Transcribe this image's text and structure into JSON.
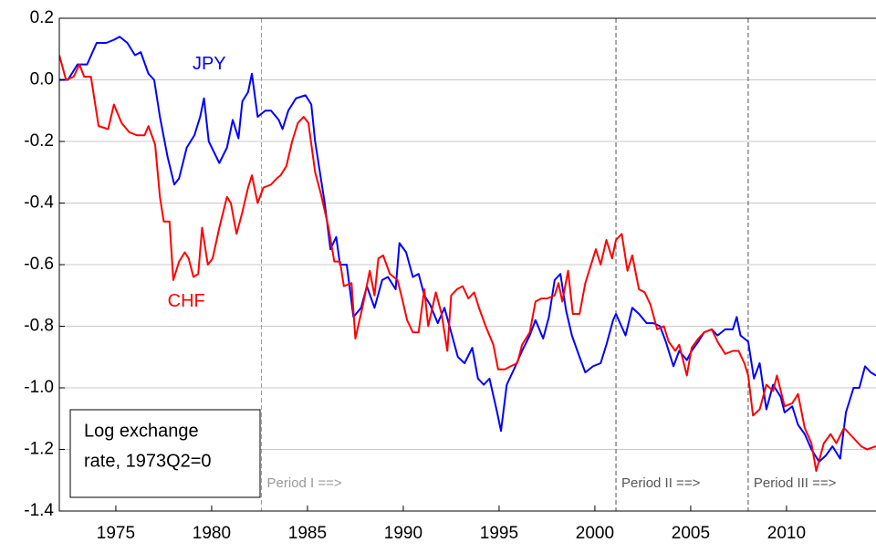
{
  "chart_data": {
    "type": "line",
    "xlim": [
      1972.05,
      2014.67
    ],
    "xticks": [
      1975,
      1980,
      1985,
      1990,
      1995,
      2000,
      2005,
      2010
    ],
    "ylim": [
      -1.4,
      0.2
    ],
    "yticks": [
      0.2,
      {
        "value": 0,
        "label": "0.0"
      },
      -0.2,
      -0.4,
      -0.6,
      -0.8,
      {
        "value": -1,
        "label": "-1.0"
      },
      -1.2,
      -1.4
    ],
    "grid": true,
    "box_label": [
      "Log exchange",
      "rate, 1973Q2=0"
    ],
    "annotations": [
      {
        "x": 1982.6,
        "label": "Period I ==>",
        "color": "#999999"
      },
      {
        "x": 2001.1,
        "label": "Period II ==>",
        "color": "#555555"
      },
      {
        "x": 2008.0,
        "label": "Period III ==>",
        "color": "#555555"
      }
    ],
    "series": [
      {
        "name": "JPY",
        "color": "#0000ff",
        "label_at": [
          1979.0,
          0.05
        ],
        "x": [
          1972.05,
          1972.5,
          1973,
          1973.5,
          1974,
          1974.5,
          1974.9,
          1975.2,
          1975.6,
          1976,
          1976.3,
          1976.7,
          1977,
          1977.3,
          1977.7,
          1978.05,
          1978.3,
          1978.7,
          1979.1,
          1979.4,
          1979.6,
          1979.85,
          1980.4,
          1980.8,
          1981.1,
          1981.4,
          1981.6,
          1981.9,
          1982.1,
          1982.4,
          1982.8,
          1983.1,
          1983.5,
          1983.7,
          1984,
          1984.4,
          1984.9,
          1985.2,
          1985.4,
          1985.7,
          1985.9,
          1986.2,
          1986.5,
          1986.7,
          1987.05,
          1987.4,
          1987.8,
          1988.1,
          1988.5,
          1988.9,
          1989.2,
          1989.6,
          1989.8,
          1990.15,
          1990.5,
          1990.8,
          1991.1,
          1991.4,
          1991.8,
          1992.15,
          1992.5,
          1992.85,
          1993.2,
          1993.6,
          1993.9,
          1994.2,
          1994.5,
          1994.9,
          1995.1,
          1995.4,
          1995.85,
          1996.2,
          1996.6,
          1996.9,
          1997.3,
          1997.6,
          1997.9,
          1998.2,
          1998.5,
          1998.8,
          1999.2,
          1999.5,
          1999.9,
          2000.3,
          2000.6,
          2000.95,
          2001.1,
          2001.6,
          2001.95,
          2002.3,
          2002.7,
          2003.05,
          2003.4,
          2003.7,
          2004.1,
          2004.4,
          2004.8,
          2005.05,
          2005.4,
          2005.7,
          2006.1,
          2006.4,
          2006.8,
          2007.2,
          2007.4,
          2007.6,
          2008,
          2008.3,
          2008.6,
          2008.95,
          2009.3,
          2009.7,
          2009.9,
          2010.3,
          2010.6,
          2010.95,
          2011.3,
          2011.7,
          2012.05,
          2012.4,
          2012.8,
          2013.1,
          2013.5,
          2013.8,
          2014.1,
          2014.4,
          2014.67
        ],
        "values": [
          0,
          0,
          0.05,
          0.05,
          0.12,
          0.12,
          0.13,
          0.14,
          0.12,
          0.08,
          0.09,
          0.02,
          0,
          -0.12,
          -0.25,
          -0.34,
          -0.32,
          -0.22,
          -0.18,
          -0.12,
          -0.06,
          -0.2,
          -0.27,
          -0.22,
          -0.13,
          -0.19,
          -0.07,
          -0.04,
          0.02,
          -0.12,
          -0.1,
          -0.1,
          -0.13,
          -0.16,
          -0.1,
          -0.06,
          -0.05,
          -0.08,
          -0.2,
          -0.32,
          -0.4,
          -0.55,
          -0.51,
          -0.6,
          -0.6,
          -0.77,
          -0.74,
          -0.67,
          -0.74,
          -0.65,
          -0.64,
          -0.68,
          -0.53,
          -0.56,
          -0.64,
          -0.63,
          -0.7,
          -0.73,
          -0.79,
          -0.74,
          -0.82,
          -0.9,
          -0.92,
          -0.87,
          -0.97,
          -0.99,
          -0.97,
          -1.08,
          -1.14,
          -0.99,
          -0.93,
          -0.88,
          -0.83,
          -0.78,
          -0.84,
          -0.77,
          -0.65,
          -0.63,
          -0.75,
          -0.83,
          -0.9,
          -0.95,
          -0.93,
          -0.92,
          -0.86,
          -0.78,
          -0.76,
          -0.83,
          -0.74,
          -0.76,
          -0.79,
          -0.79,
          -0.8,
          -0.85,
          -0.93,
          -0.88,
          -0.91,
          -0.88,
          -0.85,
          -0.82,
          -0.81,
          -0.83,
          -0.81,
          -0.81,
          -0.77,
          -0.83,
          -0.85,
          -0.97,
          -0.92,
          -1.07,
          -0.99,
          -1.03,
          -1.08,
          -1.06,
          -1.12,
          -1.15,
          -1.2,
          -1.24,
          -1.22,
          -1.19,
          -1.23,
          -1.08,
          -1,
          -1,
          -0.93,
          -0.95,
          -0.96
        ]
      },
      {
        "name": "CHF",
        "color": "#ff0000",
        "label_at": [
          1977.7,
          -0.72
        ],
        "x": [
          1972.05,
          1972.4,
          1972.8,
          1973.1,
          1973.35,
          1973.7,
          1974.1,
          1974.6,
          1974.9,
          1975.3,
          1975.7,
          1976.1,
          1976.5,
          1976.7,
          1977.05,
          1977.3,
          1977.5,
          1977.8,
          1978,
          1978.3,
          1978.6,
          1978.8,
          1979.05,
          1979.3,
          1979.5,
          1979.8,
          1980.05,
          1980.4,
          1980.8,
          1981,
          1981.3,
          1981.6,
          1981.9,
          1982.1,
          1982.4,
          1982.7,
          1983.1,
          1983.4,
          1983.6,
          1983.9,
          1984.2,
          1984.5,
          1984.8,
          1985.05,
          1985.4,
          1985.7,
          1986.1,
          1986.4,
          1986.7,
          1986.9,
          1987.3,
          1987.5,
          1987.9,
          1988.25,
          1988.5,
          1988.7,
          1988.95,
          1989.3,
          1989.7,
          1989.9,
          1990.2,
          1990.5,
          1990.8,
          1991.1,
          1991.3,
          1991.7,
          1992,
          1992.3,
          1992.5,
          1992.8,
          1993.1,
          1993.4,
          1993.7,
          1993.95,
          1994.3,
          1994.7,
          1994.95,
          1995.3,
          1995.6,
          1995.95,
          1996.2,
          1996.6,
          1996.9,
          1997.2,
          1997.5,
          1997.9,
          1998.1,
          1998.3,
          1998.6,
          1998.85,
          1999.2,
          1999.5,
          1999.8,
          2000.05,
          2000.3,
          2000.6,
          2000.9,
          2001.1,
          2001.4,
          2001.7,
          2001.95,
          2002.3,
          2002.6,
          2002.9,
          2003.25,
          2003.6,
          2003.85,
          2004.2,
          2004.4,
          2004.8,
          2005.05,
          2005.4,
          2005.7,
          2006.1,
          2006.4,
          2006.8,
          2007.2,
          2007.5,
          2007.8,
          2008,
          2008.25,
          2008.6,
          2008.95,
          2009.3,
          2009.5,
          2009.9,
          2010.3,
          2010.6,
          2010.95,
          2011.3,
          2011.55,
          2011.95,
          2012.3,
          2012.6,
          2013,
          2013.3,
          2013.6,
          2013.9,
          2014.2,
          2014.67
        ],
        "values": [
          0.08,
          0,
          0.01,
          0.05,
          0.01,
          0.01,
          -0.15,
          -0.16,
          -0.08,
          -0.14,
          -0.17,
          -0.18,
          -0.18,
          -0.15,
          -0.21,
          -0.38,
          -0.46,
          -0.46,
          -0.65,
          -0.59,
          -0.56,
          -0.58,
          -0.64,
          -0.63,
          -0.48,
          -0.6,
          -0.58,
          -0.48,
          -0.38,
          -0.4,
          -0.5,
          -0.43,
          -0.35,
          -0.31,
          -0.4,
          -0.35,
          -0.34,
          -0.32,
          -0.31,
          -0.28,
          -0.2,
          -0.14,
          -0.12,
          -0.14,
          -0.3,
          -0.37,
          -0.48,
          -0.59,
          -0.59,
          -0.67,
          -0.66,
          -0.84,
          -0.73,
          -0.62,
          -0.7,
          -0.58,
          -0.57,
          -0.63,
          -0.65,
          -0.7,
          -0.78,
          -0.82,
          -0.82,
          -0.68,
          -0.8,
          -0.69,
          -0.76,
          -0.88,
          -0.7,
          -0.68,
          -0.67,
          -0.71,
          -0.69,
          -0.74,
          -0.8,
          -0.86,
          -0.94,
          -0.94,
          -0.93,
          -0.92,
          -0.86,
          -0.82,
          -0.72,
          -0.71,
          -0.71,
          -0.7,
          -0.66,
          -0.72,
          -0.62,
          -0.76,
          -0.76,
          -0.66,
          -0.6,
          -0.55,
          -0.6,
          -0.52,
          -0.58,
          -0.52,
          -0.5,
          -0.62,
          -0.57,
          -0.68,
          -0.69,
          -0.73,
          -0.81,
          -0.8,
          -0.85,
          -0.88,
          -0.86,
          -0.96,
          -0.87,
          -0.84,
          -0.82,
          -0.81,
          -0.85,
          -0.89,
          -0.88,
          -0.88,
          -0.92,
          -0.96,
          -1.09,
          -1.07,
          -0.99,
          -1.01,
          -0.96,
          -1.06,
          -1.05,
          -1.02,
          -1.13,
          -1.18,
          -1.27,
          -1.18,
          -1.15,
          -1.18,
          -1.13,
          -1.15,
          -1.17,
          -1.19,
          -1.2,
          -1.19
        ]
      }
    ]
  }
}
